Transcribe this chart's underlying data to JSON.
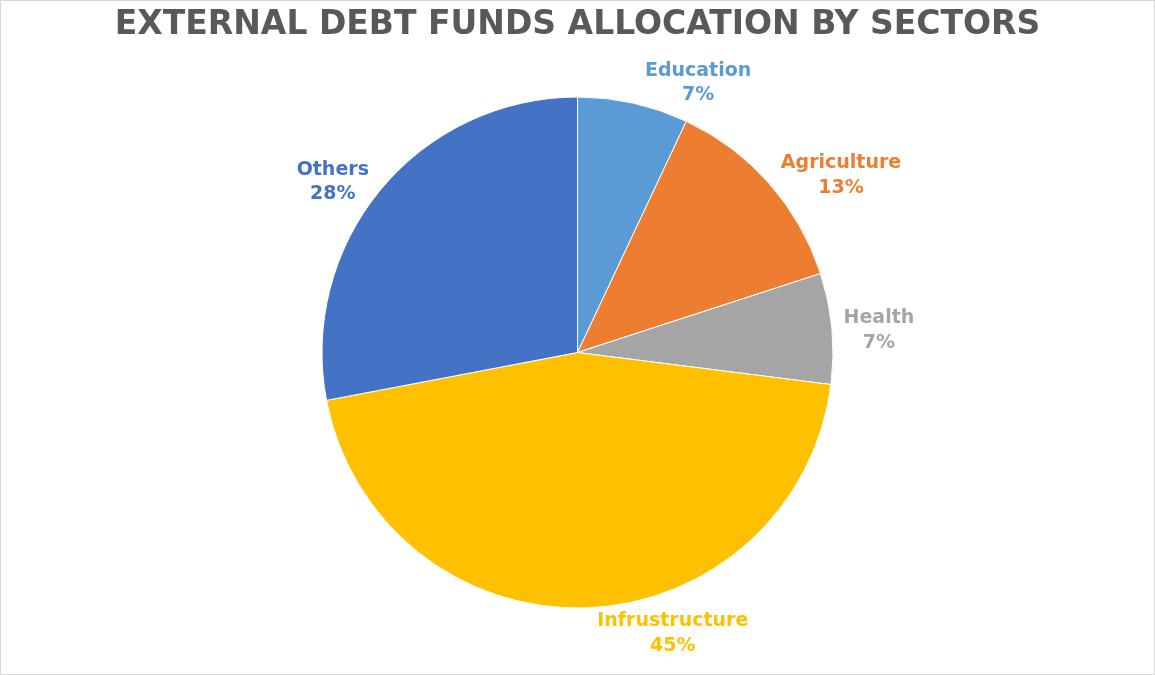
{
  "chart_data": {
    "type": "pie",
    "title": "EXTERNAL DEBT FUNDS ALLOCATION BY SECTORS",
    "categories": [
      "Education",
      "Agriculture",
      "Health",
      "Infrustructure",
      "Others"
    ],
    "values": [
      7,
      13,
      7,
      45,
      28
    ],
    "value_labels": [
      "7%",
      "13%",
      "7%",
      "45%",
      "28%"
    ],
    "colors": [
      "#5b9bd5",
      "#ed7d31",
      "#a5a5a5",
      "#ffc000",
      "#4472c4"
    ],
    "legend": false
  }
}
